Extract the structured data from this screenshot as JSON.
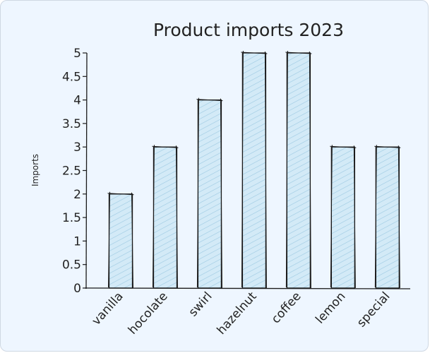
{
  "chart_data": {
    "type": "bar",
    "title": "Product imports 2023",
    "xlabel": "",
    "ylabel": "Imports",
    "categories": [
      "vanilla",
      "hocolate",
      "swirl",
      "hazelnut",
      "coffee",
      "lemon",
      "special"
    ],
    "values": [
      2,
      3,
      4,
      5,
      5,
      3,
      3
    ],
    "ylim": [
      0,
      5
    ],
    "yticks": [
      "0",
      "0.5",
      "1",
      "1.5",
      "2",
      "2.5",
      "3",
      "3.5",
      "4",
      "4.5",
      "5"
    ],
    "grid": false,
    "colors": {
      "bar_fill": "#cfe7f5",
      "hatch": "#9cc9e2",
      "stroke": "#1a1a1a",
      "background": "#eef6ff"
    }
  }
}
